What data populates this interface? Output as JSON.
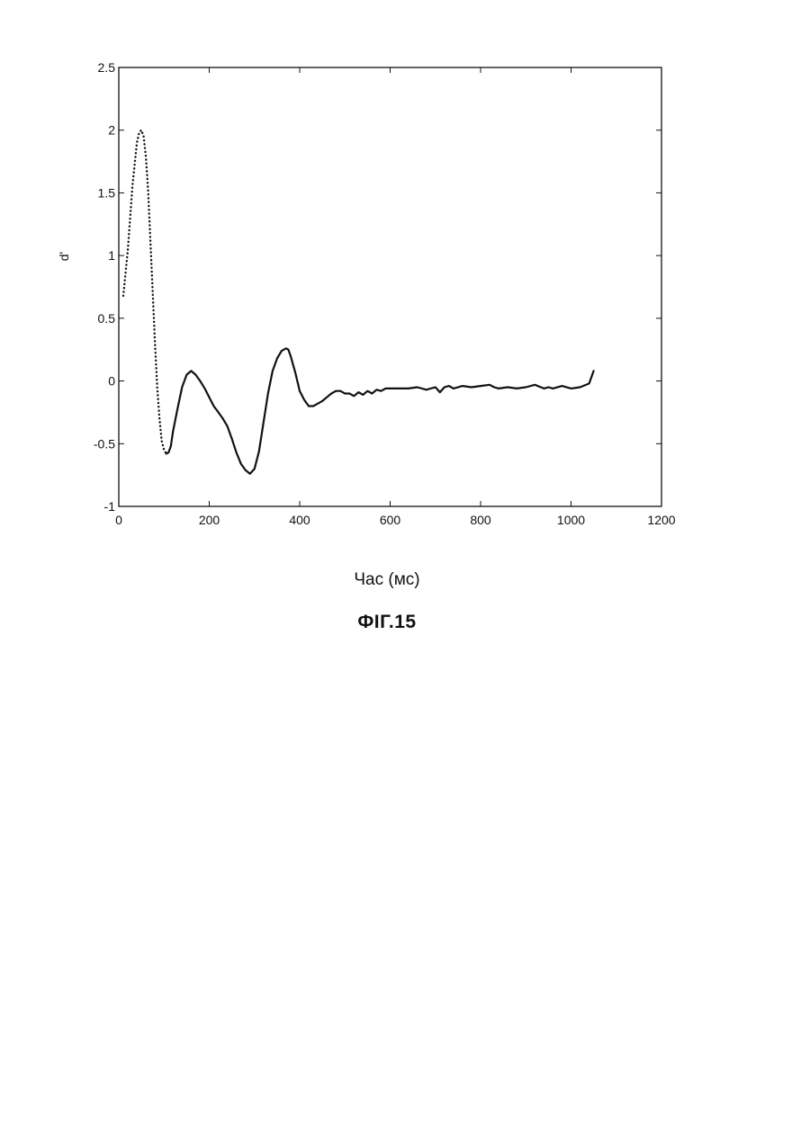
{
  "chart_data": {
    "type": "line",
    "title": "",
    "xlabel": "Час (мс)",
    "ylabel": "d'",
    "xlim": [
      0,
      1200
    ],
    "ylim": [
      -1,
      2.5
    ],
    "xticks": [
      "0",
      "200",
      "400",
      "600",
      "800",
      "1000",
      "1200"
    ],
    "yticks": [
      "-1",
      "-0.5",
      "0",
      "0.5",
      "1",
      "1.5",
      "2",
      "2.5"
    ],
    "grid": false,
    "series": [
      {
        "style": "dotted",
        "x": [
          10,
          20,
          30,
          40,
          45,
          50,
          55,
          60,
          65,
          70,
          75,
          80,
          85,
          90,
          95,
          100,
          105
        ],
        "y": [
          0.68,
          1.05,
          1.55,
          1.9,
          1.98,
          2.0,
          1.95,
          1.78,
          1.5,
          1.1,
          0.7,
          0.3,
          -0.05,
          -0.3,
          -0.48,
          -0.55,
          -0.58
        ]
      },
      {
        "style": "solid",
        "x": [
          105,
          110,
          115,
          120,
          130,
          140,
          150,
          160,
          170,
          180,
          190,
          200,
          210,
          220,
          230,
          240,
          250,
          260,
          270,
          280,
          290,
          300,
          310,
          320,
          330,
          340,
          350,
          360,
          370,
          375,
          380,
          390,
          400,
          410,
          420,
          430,
          440,
          450,
          460,
          470,
          480,
          490,
          500,
          510,
          520,
          530,
          540,
          550,
          560,
          570,
          580,
          590,
          600,
          620,
          640,
          660,
          680,
          700,
          710,
          720,
          730,
          740,
          760,
          780,
          800,
          820,
          830,
          840,
          860,
          880,
          900,
          920,
          940,
          950,
          960,
          980,
          1000,
          1020,
          1040,
          1050
        ],
        "y": [
          -0.58,
          -0.57,
          -0.52,
          -0.4,
          -0.22,
          -0.05,
          0.05,
          0.08,
          0.05,
          0.0,
          -0.06,
          -0.13,
          -0.2,
          -0.25,
          -0.3,
          -0.36,
          -0.46,
          -0.57,
          -0.66,
          -0.71,
          -0.74,
          -0.7,
          -0.56,
          -0.33,
          -0.1,
          0.08,
          0.18,
          0.24,
          0.26,
          0.25,
          0.2,
          0.07,
          -0.08,
          -0.15,
          -0.2,
          -0.2,
          -0.18,
          -0.16,
          -0.13,
          -0.1,
          -0.08,
          -0.08,
          -0.1,
          -0.1,
          -0.12,
          -0.09,
          -0.11,
          -0.08,
          -0.1,
          -0.07,
          -0.08,
          -0.06,
          -0.06,
          -0.06,
          -0.06,
          -0.05,
          -0.07,
          -0.05,
          -0.09,
          -0.05,
          -0.04,
          -0.06,
          -0.04,
          -0.05,
          -0.04,
          -0.03,
          -0.05,
          -0.06,
          -0.05,
          -0.06,
          -0.05,
          -0.03,
          -0.06,
          -0.05,
          -0.06,
          -0.04,
          -0.06,
          -0.05,
          -0.02,
          0.08
        ]
      }
    ]
  },
  "caption": "ФІГ.15",
  "colors": {
    "line": "#111111",
    "axes": "#111111",
    "background": "#ffffff"
  }
}
